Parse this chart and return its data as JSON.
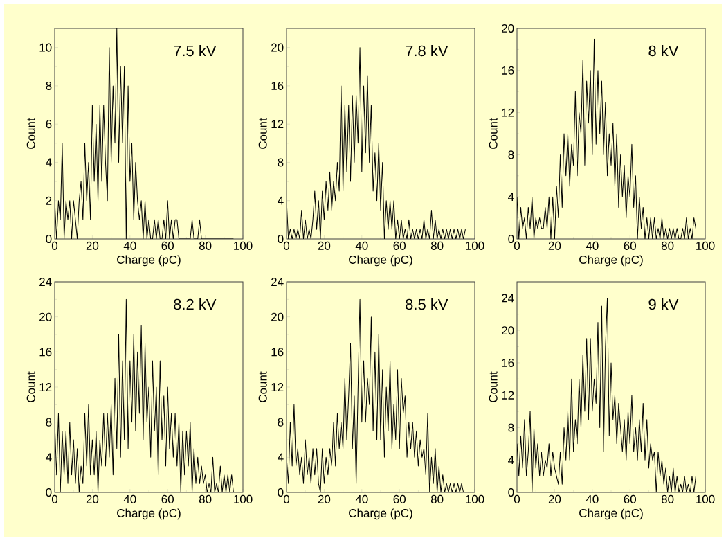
{
  "chart_data": [
    {
      "type": "line",
      "annotations": [
        "7.5 kV"
      ],
      "xlabel": "Charge (pC)",
      "ylabel": "Count",
      "xlim": [
        0,
        100
      ],
      "ylim": [
        0,
        11
      ],
      "xticks": [
        0,
        20,
        40,
        60,
        80,
        100
      ],
      "yticks": [
        0,
        2,
        4,
        6,
        8,
        10
      ],
      "x": [
        0,
        1,
        2,
        3,
        4,
        5,
        6,
        7,
        8,
        9,
        10,
        11,
        12,
        13,
        14,
        15,
        16,
        17,
        18,
        19,
        20,
        21,
        22,
        23,
        24,
        25,
        26,
        27,
        28,
        29,
        30,
        31,
        32,
        33,
        34,
        35,
        36,
        37,
        38,
        39,
        40,
        41,
        42,
        43,
        44,
        45,
        46,
        47,
        48,
        49,
        50,
        51,
        52,
        53,
        54,
        55,
        56,
        57,
        58,
        59,
        60,
        61,
        62,
        63,
        64,
        65,
        66,
        67,
        68,
        69,
        70,
        71,
        72,
        73,
        74,
        75,
        76,
        77,
        78,
        79,
        80,
        81,
        82,
        83,
        84,
        85,
        86,
        87,
        88,
        89,
        90,
        91,
        92,
        93,
        94,
        95
      ],
      "series": [
        {
          "color": "#000000",
          "values": [
            2,
            0,
            2,
            1,
            5,
            0,
            2,
            1,
            2,
            0,
            2,
            1,
            0,
            2,
            3,
            1,
            5,
            2,
            4,
            1,
            7,
            3,
            6,
            2,
            7,
            3,
            7,
            4,
            2,
            10,
            4,
            8,
            5,
            11,
            4,
            9,
            5,
            9,
            0,
            8,
            3,
            5,
            1,
            4,
            2,
            1,
            2,
            0,
            2,
            0,
            1,
            0,
            0,
            1,
            0,
            1,
            0,
            0,
            1,
            0,
            2,
            0,
            1,
            0,
            1,
            1,
            0,
            0,
            0,
            0,
            0,
            0,
            0,
            1,
            0,
            0,
            0,
            1,
            0,
            0,
            0,
            0,
            0,
            0,
            0,
            0,
            0,
            0,
            0,
            0,
            0,
            0,
            0,
            0,
            0,
            0
          ]
        }
      ]
    },
    {
      "type": "line",
      "annotations": [
        "7.8 kV"
      ],
      "xlabel": "Charge (pC)",
      "ylabel": "Count",
      "xlim": [
        0,
        100
      ],
      "ylim": [
        0,
        22
      ],
      "xticks": [
        0,
        20,
        40,
        60,
        80,
        100
      ],
      "yticks": [
        0,
        4,
        8,
        12,
        16,
        20
      ],
      "x": [
        0,
        1,
        2,
        3,
        4,
        5,
        6,
        7,
        8,
        9,
        10,
        11,
        12,
        13,
        14,
        15,
        16,
        17,
        18,
        19,
        20,
        21,
        22,
        23,
        24,
        25,
        26,
        27,
        28,
        29,
        30,
        31,
        32,
        33,
        34,
        35,
        36,
        37,
        38,
        39,
        40,
        41,
        42,
        43,
        44,
        45,
        46,
        47,
        48,
        49,
        50,
        51,
        52,
        53,
        54,
        55,
        56,
        57,
        58,
        59,
        60,
        61,
        62,
        63,
        64,
        65,
        66,
        67,
        68,
        69,
        70,
        71,
        72,
        73,
        74,
        75,
        76,
        77,
        78,
        79,
        80,
        81,
        82,
        83,
        84,
        85,
        86,
        87,
        88,
        89,
        90,
        91,
        92,
        93,
        94,
        95
      ],
      "series": [
        {
          "color": "#000000",
          "values": [
            4,
            0,
            1,
            0,
            1,
            0,
            1,
            0,
            3,
            0,
            2,
            0,
            1,
            0,
            2,
            5,
            1,
            4,
            0,
            5,
            2,
            6,
            3,
            7,
            3,
            6,
            4,
            8,
            5,
            16,
            5,
            14,
            7,
            14,
            6,
            15,
            8,
            15,
            10,
            20,
            7,
            16,
            9,
            17,
            8,
            14,
            5,
            9,
            4,
            10,
            3,
            8,
            0,
            4,
            1,
            4,
            1,
            4,
            0,
            2,
            0,
            2,
            0,
            1,
            0,
            2,
            0,
            1,
            0,
            1,
            0,
            1,
            0,
            2,
            0,
            1,
            0,
            3,
            0,
            2,
            0,
            1,
            0,
            1,
            0,
            1,
            0,
            1,
            0,
            1,
            0,
            1,
            0,
            1,
            0,
            1
          ]
        }
      ]
    },
    {
      "type": "line",
      "annotations": [
        "8 kV"
      ],
      "xlabel": "Charge (pC)",
      "ylabel": "Count",
      "xlim": [
        0,
        100
      ],
      "ylim": [
        0,
        20
      ],
      "xticks": [
        0,
        20,
        40,
        60,
        80,
        100
      ],
      "yticks": [
        0,
        4,
        8,
        12,
        16,
        20
      ],
      "x": [
        0,
        1,
        2,
        3,
        4,
        5,
        6,
        7,
        8,
        9,
        10,
        11,
        12,
        13,
        14,
        15,
        16,
        17,
        18,
        19,
        20,
        21,
        22,
        23,
        24,
        25,
        26,
        27,
        28,
        29,
        30,
        31,
        32,
        33,
        34,
        35,
        36,
        37,
        38,
        39,
        40,
        41,
        42,
        43,
        44,
        45,
        46,
        47,
        48,
        49,
        50,
        51,
        52,
        53,
        54,
        55,
        56,
        57,
        58,
        59,
        60,
        61,
        62,
        63,
        64,
        65,
        66,
        67,
        68,
        69,
        70,
        71,
        72,
        73,
        74,
        75,
        76,
        77,
        78,
        79,
        80,
        81,
        82,
        83,
        84,
        85,
        86,
        87,
        88,
        89,
        90,
        91,
        92,
        93,
        94,
        95
      ],
      "series": [
        {
          "color": "#000000",
          "values": [
            4,
            0,
            3,
            1,
            2,
            0,
            3,
            1,
            4,
            0,
            2,
            1,
            2,
            1,
            1,
            3,
            1,
            4,
            0,
            4,
            0,
            5,
            2,
            8,
            3,
            10,
            6,
            10,
            5,
            9,
            7,
            14,
            6,
            12,
            10,
            17,
            7,
            15,
            11,
            16,
            8,
            19,
            9,
            16,
            10,
            15,
            8,
            13,
            6,
            10,
            7,
            11,
            5,
            10,
            3,
            8,
            4,
            7,
            2,
            6,
            4,
            9,
            3,
            6,
            0,
            4,
            1,
            3,
            0,
            2,
            0,
            2,
            0,
            2,
            0,
            1,
            0,
            2,
            0,
            1,
            0,
            1,
            0,
            1,
            0,
            1,
            0,
            0,
            1,
            0,
            2,
            0,
            1,
            0,
            2,
            1
          ]
        }
      ]
    },
    {
      "type": "line",
      "annotations": [
        "8.2 kV"
      ],
      "xlabel": "Charge (pC)",
      "ylabel": "Count",
      "xlim": [
        0,
        100
      ],
      "ylim": [
        0,
        24
      ],
      "xticks": [
        0,
        20,
        40,
        60,
        80,
        100
      ],
      "yticks": [
        0,
        4,
        8,
        12,
        16,
        20,
        24
      ],
      "x": [
        0,
        1,
        2,
        3,
        4,
        5,
        6,
        7,
        8,
        9,
        10,
        11,
        12,
        13,
        14,
        15,
        16,
        17,
        18,
        19,
        20,
        21,
        22,
        23,
        24,
        25,
        26,
        27,
        28,
        29,
        30,
        31,
        32,
        33,
        34,
        35,
        36,
        37,
        38,
        39,
        40,
        41,
        42,
        43,
        44,
        45,
        46,
        47,
        48,
        49,
        50,
        51,
        52,
        53,
        54,
        55,
        56,
        57,
        58,
        59,
        60,
        61,
        62,
        63,
        64,
        65,
        66,
        67,
        68,
        69,
        70,
        71,
        72,
        73,
        74,
        75,
        76,
        77,
        78,
        79,
        80,
        81,
        82,
        83,
        84,
        85,
        86,
        87,
        88,
        89,
        90,
        91,
        92,
        93,
        94,
        95
      ],
      "series": [
        {
          "color": "#000000",
          "values": [
            8,
            2,
            9,
            0,
            7,
            2,
            7,
            1,
            8,
            2,
            6,
            1,
            5,
            0,
            3,
            1,
            9,
            3,
            10,
            2,
            6,
            2,
            7,
            0,
            6,
            3,
            9,
            3,
            9,
            4,
            10,
            2,
            13,
            5,
            18,
            4,
            15,
            6,
            22,
            5,
            15,
            8,
            18,
            7,
            16,
            9,
            19,
            6,
            17,
            8,
            12,
            4,
            15,
            7,
            12,
            2,
            15,
            6,
            11,
            3,
            12,
            5,
            9,
            4,
            9,
            3,
            8,
            0,
            7,
            2,
            7,
            3,
            8,
            0,
            5,
            1,
            4,
            1,
            3,
            1,
            2,
            0,
            1,
            0,
            4,
            0,
            1,
            0,
            3,
            0,
            2,
            0,
            2,
            0,
            2,
            0
          ]
        }
      ]
    },
    {
      "type": "line",
      "annotations": [
        "8.5 kV"
      ],
      "xlabel": "Charge (pC)",
      "ylabel": "Count",
      "xlim": [
        0,
        100
      ],
      "ylim": [
        0,
        24
      ],
      "xticks": [
        0,
        20,
        40,
        60,
        80,
        100
      ],
      "yticks": [
        0,
        4,
        8,
        12,
        16,
        20,
        24
      ],
      "x": [
        0,
        1,
        2,
        3,
        4,
        5,
        6,
        7,
        8,
        9,
        10,
        11,
        12,
        13,
        14,
        15,
        16,
        17,
        18,
        19,
        20,
        21,
        22,
        23,
        24,
        25,
        26,
        27,
        28,
        29,
        30,
        31,
        32,
        33,
        34,
        35,
        36,
        37,
        38,
        39,
        40,
        41,
        42,
        43,
        44,
        45,
        46,
        47,
        48,
        49,
        50,
        51,
        52,
        53,
        54,
        55,
        56,
        57,
        58,
        59,
        60,
        61,
        62,
        63,
        64,
        65,
        66,
        67,
        68,
        69,
        70,
        71,
        72,
        73,
        74,
        75,
        76,
        77,
        78,
        79,
        80,
        81,
        82,
        83,
        84,
        85,
        86,
        87,
        88,
        89,
        90,
        91,
        92,
        93,
        94,
        95
      ],
      "series": [
        {
          "color": "#000000",
          "values": [
            4,
            1,
            8,
            3,
            10,
            3,
            5,
            2,
            4,
            1,
            6,
            2,
            4,
            1,
            5,
            2,
            5,
            1,
            0,
            5,
            1,
            4,
            2,
            5,
            3,
            8,
            3,
            9,
            5,
            8,
            5,
            13,
            6,
            11,
            17,
            5,
            11,
            1,
            12,
            22,
            8,
            15,
            8,
            13,
            10,
            20,
            7,
            16,
            6,
            18,
            6,
            14,
            4,
            12,
            7,
            15,
            5,
            10,
            6,
            14,
            5,
            13,
            9,
            11,
            4,
            8,
            5,
            8,
            4,
            7,
            3,
            6,
            4,
            5,
            2,
            9,
            0,
            4,
            1,
            5,
            0,
            3,
            0,
            2,
            0,
            1,
            0,
            1,
            0,
            1,
            0,
            1,
            0,
            1,
            0,
            0
          ]
        }
      ]
    },
    {
      "type": "line",
      "annotations": [
        "9 kV"
      ],
      "xlabel": "Charge (pC)",
      "ylabel": "Count",
      "xlim": [
        0,
        100
      ],
      "ylim": [
        0,
        26
      ],
      "xticks": [
        0,
        20,
        40,
        60,
        80,
        100
      ],
      "yticks": [
        0,
        4,
        8,
        12,
        16,
        20,
        24
      ],
      "x": [
        0,
        1,
        2,
        3,
        4,
        5,
        6,
        7,
        8,
        9,
        10,
        11,
        12,
        13,
        14,
        15,
        16,
        17,
        18,
        19,
        20,
        21,
        22,
        23,
        24,
        25,
        26,
        27,
        28,
        29,
        30,
        31,
        32,
        33,
        34,
        35,
        36,
        37,
        38,
        39,
        40,
        41,
        42,
        43,
        44,
        45,
        46,
        47,
        48,
        49,
        50,
        51,
        52,
        53,
        54,
        55,
        56,
        57,
        58,
        59,
        60,
        61,
        62,
        63,
        64,
        65,
        66,
        67,
        68,
        69,
        70,
        71,
        72,
        73,
        74,
        75,
        76,
        77,
        78,
        79,
        80,
        81,
        82,
        83,
        84,
        85,
        86,
        87,
        88,
        89,
        90,
        91,
        92,
        93,
        94,
        95
      ],
      "series": [
        {
          "color": "#000000",
          "values": [
            6,
            2,
            7,
            3,
            9,
            2,
            5,
            10,
            0,
            8,
            3,
            6,
            2,
            5,
            2,
            4,
            3,
            6,
            2,
            5,
            3,
            2,
            1,
            5,
            1,
            8,
            4,
            10,
            4,
            14,
            5,
            9,
            6,
            14,
            8,
            17,
            10,
            19,
            9,
            19,
            10,
            14,
            11,
            21,
            8,
            23,
            5,
            18,
            24,
            7,
            16,
            9,
            12,
            6,
            11,
            8,
            5,
            9,
            4,
            10,
            6,
            12,
            5,
            8,
            4,
            9,
            5,
            11,
            4,
            9,
            3,
            6,
            4,
            5,
            0,
            5,
            2,
            4,
            1,
            3,
            0,
            2,
            0,
            3,
            0,
            2,
            0,
            1,
            0,
            2,
            0,
            1,
            0,
            2,
            0,
            2
          ]
        }
      ]
    }
  ]
}
